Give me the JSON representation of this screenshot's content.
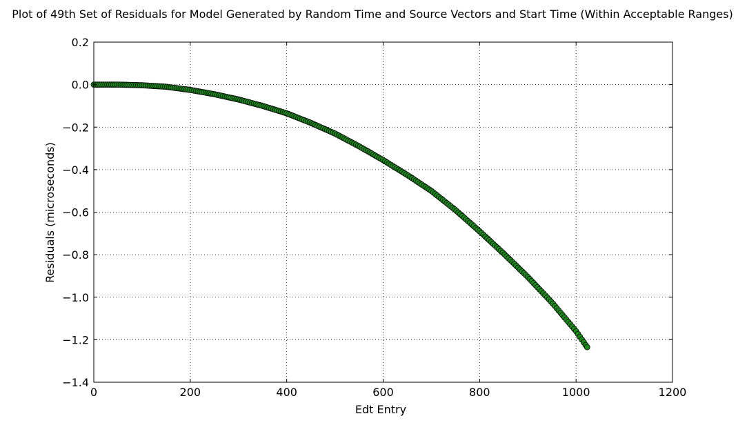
{
  "chart_data": {
    "type": "scatter",
    "title": "Plot of 49th Set of Residuals for Model Generated by Random Time and Source Vectors and Start Time (Within Acceptable Ranges)",
    "xlabel": "Edt Entry",
    "ylabel": "Residuals (microseconds)",
    "xlim": [
      0,
      1200
    ],
    "ylim": [
      -1.4,
      0.2
    ],
    "xticks": [
      0,
      200,
      400,
      600,
      800,
      1000,
      1200
    ],
    "yticks": [
      0.2,
      0.0,
      -0.2,
      -0.4,
      -0.6,
      -0.8,
      -1.0,
      -1.2,
      -1.4
    ],
    "xtick_labels": [
      "0",
      "200",
      "400",
      "600",
      "800",
      "1000",
      "1200"
    ],
    "ytick_labels": [
      "0.2",
      "0.0",
      "−0.2",
      "−0.4",
      "−0.6",
      "−0.8",
      "−1.0",
      "−1.2",
      "−1.4"
    ],
    "grid": true,
    "marker_color": "#1a8a1a",
    "marker_edge_color": "#000000",
    "series": [
      {
        "x": [
          0,
          50,
          100,
          150,
          200,
          250,
          300,
          350,
          400,
          450,
          500,
          550,
          600,
          650,
          700,
          750,
          800,
          850,
          900,
          950,
          1000,
          1023
        ],
        "values": [
          0.0,
          0.0,
          -0.003,
          -0.01,
          -0.025,
          -0.045,
          -0.07,
          -0.1,
          -0.135,
          -0.18,
          -0.23,
          -0.29,
          -0.355,
          -0.425,
          -0.5,
          -0.59,
          -0.69,
          -0.795,
          -0.905,
          -1.025,
          -1.16,
          -1.235
        ]
      }
    ]
  }
}
